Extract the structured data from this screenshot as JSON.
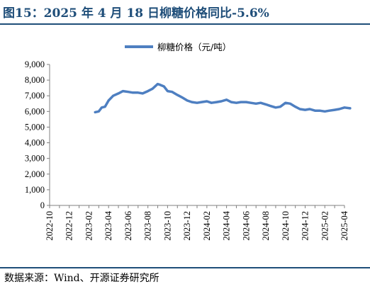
{
  "title": "图15：2025 年 4 月 18 日柳糖价格同比-5.6%",
  "source": "数据来源：Wind、开源证券研究所",
  "colors": {
    "title": "#1f4e79",
    "line": "#4e7fc1",
    "axis": "#808080"
  },
  "chart_data": {
    "type": "line",
    "title": "",
    "xlabel": "",
    "ylabel": "",
    "ylim": [
      0,
      9000
    ],
    "y_ticks": [
      "0",
      "1,000",
      "2,000",
      "3,000",
      "4,000",
      "5,000",
      "6,000",
      "7,000",
      "8,000",
      "9,000"
    ],
    "x_ticks": [
      "2022-10",
      "2022-12",
      "2023-02",
      "2023-04",
      "2023-06",
      "2023-08",
      "2023-10",
      "2023-12",
      "2024-02",
      "2024-04",
      "2024-06",
      "2024-08",
      "2024-10",
      "2024-12",
      "2025-02",
      "2025-04"
    ],
    "legend": {
      "position": "top-center"
    },
    "grid": false,
    "series": [
      {
        "name": "柳糖价格（元/吨）",
        "x": [
          "2023-02-20",
          "2023-03-01",
          "2023-03-10",
          "2023-03-20",
          "2023-04-01",
          "2023-04-15",
          "2023-05-01",
          "2023-05-15",
          "2023-06-01",
          "2023-06-15",
          "2023-07-01",
          "2023-07-15",
          "2023-08-01",
          "2023-08-15",
          "2023-09-01",
          "2023-09-08",
          "2023-09-20",
          "2023-10-01",
          "2023-10-15",
          "2023-11-01",
          "2023-11-15",
          "2023-12-01",
          "2023-12-15",
          "2024-01-01",
          "2024-01-15",
          "2024-02-01",
          "2024-02-15",
          "2024-03-01",
          "2024-03-15",
          "2024-04-01",
          "2024-04-15",
          "2024-05-01",
          "2024-05-15",
          "2024-06-01",
          "2024-06-15",
          "2024-07-01",
          "2024-07-15",
          "2024-08-01",
          "2024-08-15",
          "2024-09-01",
          "2024-09-15",
          "2024-10-01",
          "2024-10-15",
          "2024-11-01",
          "2024-11-15",
          "2024-12-01",
          "2024-12-15",
          "2025-01-01",
          "2025-01-15",
          "2025-02-01",
          "2025-02-15",
          "2025-03-01",
          "2025-03-15",
          "2025-04-01",
          "2025-04-18"
        ],
        "values": [
          5950,
          6000,
          6250,
          6300,
          6700,
          7000,
          7150,
          7300,
          7250,
          7200,
          7200,
          7150,
          7300,
          7450,
          7750,
          7700,
          7600,
          7300,
          7250,
          7050,
          6900,
          6700,
          6600,
          6550,
          6600,
          6650,
          6550,
          6600,
          6650,
          6750,
          6600,
          6550,
          6600,
          6600,
          6550,
          6500,
          6550,
          6450,
          6350,
          6250,
          6300,
          6550,
          6500,
          6300,
          6150,
          6100,
          6150,
          6050,
          6050,
          6000,
          6050,
          6100,
          6150,
          6250,
          6200
        ]
      }
    ]
  }
}
